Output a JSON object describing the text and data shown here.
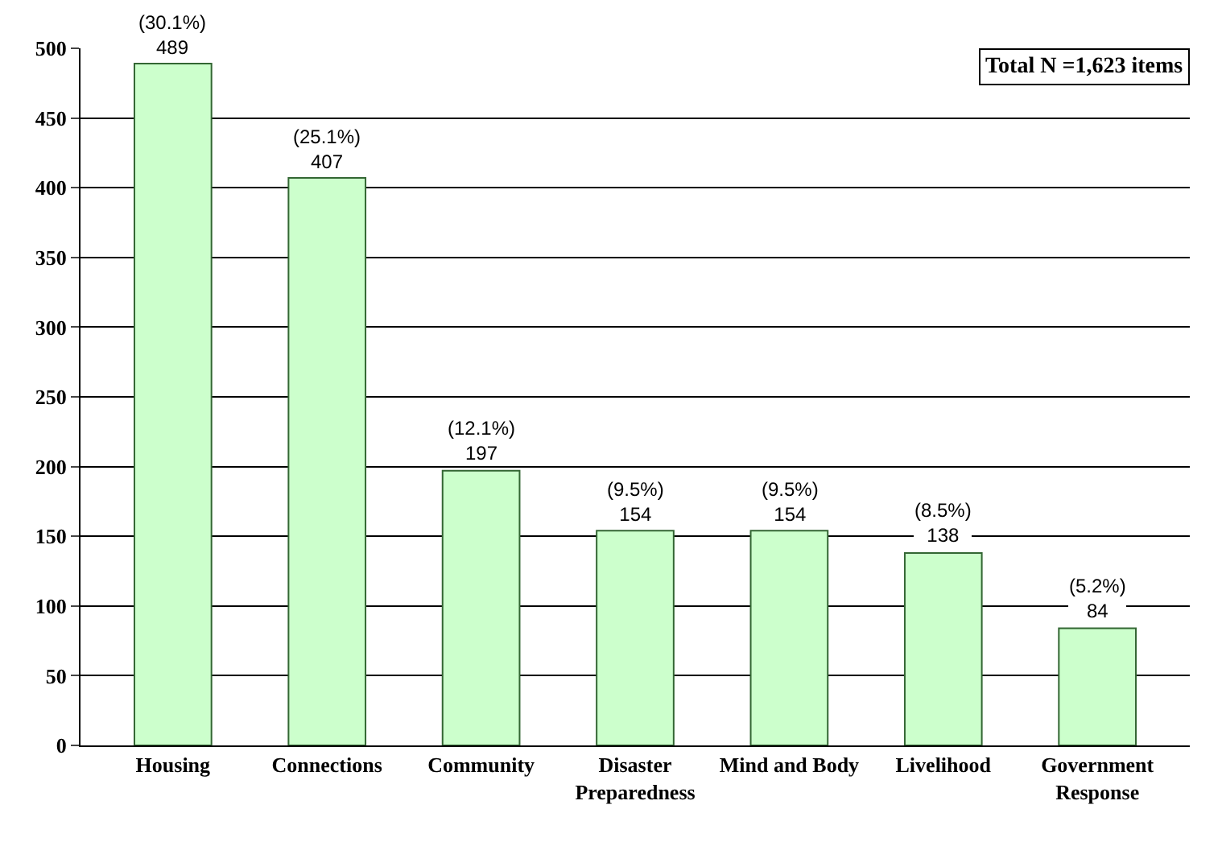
{
  "chart_data": {
    "type": "bar",
    "categories": [
      "Housing",
      "Connections",
      "Community",
      "Disaster\nPreparedness",
      "Mind and Body",
      "Livelihood",
      "Government\nResponse"
    ],
    "values": [
      489,
      407,
      197,
      154,
      154,
      138,
      84
    ],
    "value_labels": [
      "(30.1%)\n489",
      "(25.1%)\n407",
      "(12.1%)\n197",
      "(9.5%)\n154",
      "(9.5%)\n154",
      "(8.5%)\n138",
      "(5.2%)\n84"
    ],
    "color": "#ccffcc",
    "ylim": [
      0,
      500
    ],
    "yticks": [
      0,
      50,
      100,
      150,
      200,
      250,
      300,
      350,
      400,
      450,
      500
    ],
    "grid": "y",
    "annotations": [
      "Total N =1,623 items"
    ]
  }
}
